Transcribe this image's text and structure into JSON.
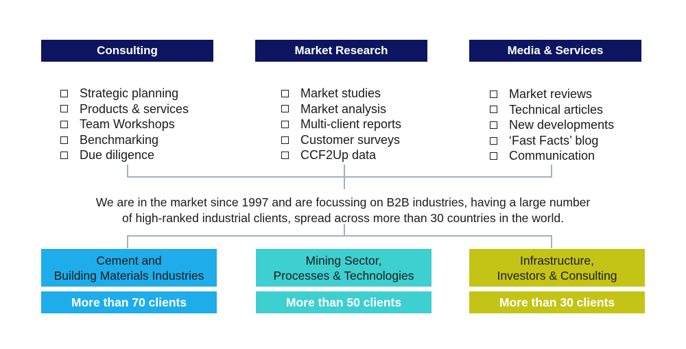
{
  "colors": {
    "header_bg": "#0d1460",
    "connector": "#9db3c3",
    "sector_cement": "#1eadea",
    "sector_mining": "#3ecfd0",
    "sector_infra": "#c4c416"
  },
  "checkbox_icon": "square-outline-checkbox",
  "columns": [
    {
      "title": "Consulting",
      "items": [
        "Strategic planning",
        "Products & services",
        "Team Workshops",
        "Benchmarking",
        "Due diligence"
      ]
    },
    {
      "title": "Market Research",
      "items": [
        "Market studies",
        "Market analysis",
        "Multi-client reports",
        "Customer surveys",
        "CCF2Up data"
      ]
    },
    {
      "title": "Media & Services",
      "items": [
        "Market reviews",
        "Technical articles",
        "New developments",
        "‘Fast Facts’ blog",
        "Communication"
      ]
    }
  ],
  "summary": {
    "line1": "We are in the market since 1997 and are focussing on B2B industries, having a large number",
    "line2": "of high-ranked industrial clients, spread across more than 30 countries in the world."
  },
  "sectors": [
    {
      "line1": "Cement and",
      "line2": "Building Materials Industries",
      "clients": "More than 70 clients"
    },
    {
      "line1": "Mining Sector,",
      "line2": "Processes & Technologies",
      "clients": "More than 50 clients"
    },
    {
      "line1": "Infrastructure,",
      "line2": "Investors & Consulting",
      "clients": "More than 30 clients"
    }
  ]
}
